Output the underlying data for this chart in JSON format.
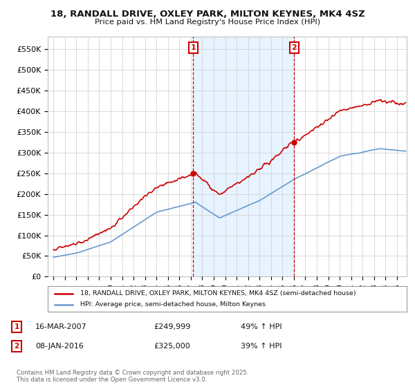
{
  "title_line1": "18, RANDALL DRIVE, OXLEY PARK, MILTON KEYNES, MK4 4SZ",
  "title_line2": "Price paid vs. HM Land Registry's House Price Index (HPI)",
  "ylim": [
    0,
    580000
  ],
  "yticks": [
    0,
    50000,
    100000,
    150000,
    200000,
    250000,
    300000,
    350000,
    400000,
    450000,
    500000,
    550000
  ],
  "ytick_labels": [
    "£0",
    "£50K",
    "£100K",
    "£150K",
    "£200K",
    "£250K",
    "£300K",
    "£350K",
    "£400K",
    "£450K",
    "£500K",
    "£550K"
  ],
  "sale1_date": "16-MAR-2007",
  "sale1_price": 249999,
  "sale1_price_str": "£249,999",
  "sale1_hpi": "49% ↑ HPI",
  "sale2_date": "08-JAN-2016",
  "sale2_price": 325000,
  "sale2_price_str": "£325,000",
  "sale2_hpi": "39% ↑ HPI",
  "legend_property": "18, RANDALL DRIVE, OXLEY PARK, MILTON KEYNES, MK4 4SZ (semi-detached house)",
  "legend_hpi": "HPI: Average price, semi-detached house, Milton Keynes",
  "footer": "Contains HM Land Registry data © Crown copyright and database right 2025.\nThis data is licensed under the Open Government Licence v3.0.",
  "property_color": "#cc0000",
  "hpi_color": "#6699cc",
  "hpi_fill_color": "#ddeeff",
  "background_color": "#ffffff",
  "grid_color": "#cccccc",
  "sale_line_color": "#cc0000",
  "sale1_x": 2007.21,
  "sale2_x": 2016.03,
  "xlim_left": 1994.5,
  "xlim_right": 2025.85
}
